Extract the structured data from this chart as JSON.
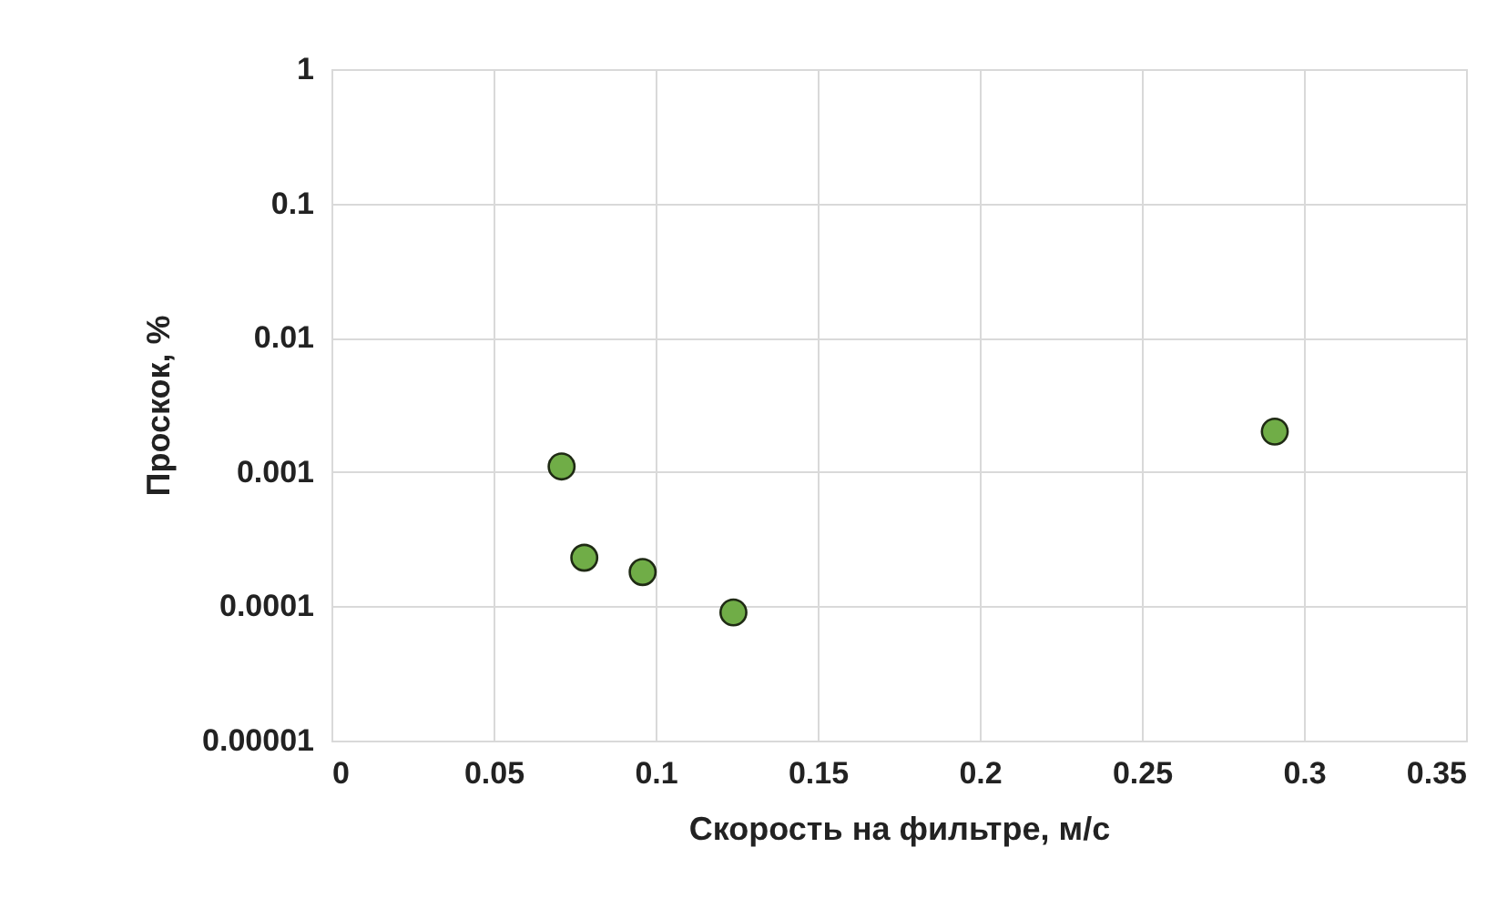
{
  "chart_data": {
    "type": "scatter",
    "xlabel": "Скорость на фильтре, м/с",
    "ylabel": "Проскок, %",
    "x": [
      0.071,
      0.078,
      0.096,
      0.124,
      0.291
    ],
    "series": [
      {
        "color": "#70ad47",
        "values": [
          0.0011,
          0.00023,
          0.00018,
          9e-05,
          0.002
        ]
      }
    ],
    "xlim": [
      0,
      0.35
    ],
    "xticks": [
      0,
      0.05,
      0.1,
      0.15,
      0.2,
      0.25,
      0.3,
      0.35
    ],
    "ylim": [
      1e-05,
      1
    ],
    "yticks": [
      {
        "value": 1e-05,
        "label": "0.00001"
      },
      0.0001,
      0.001,
      0.01,
      0.1,
      1
    ],
    "log": "y",
    "grid": true,
    "marker": "circle"
  }
}
